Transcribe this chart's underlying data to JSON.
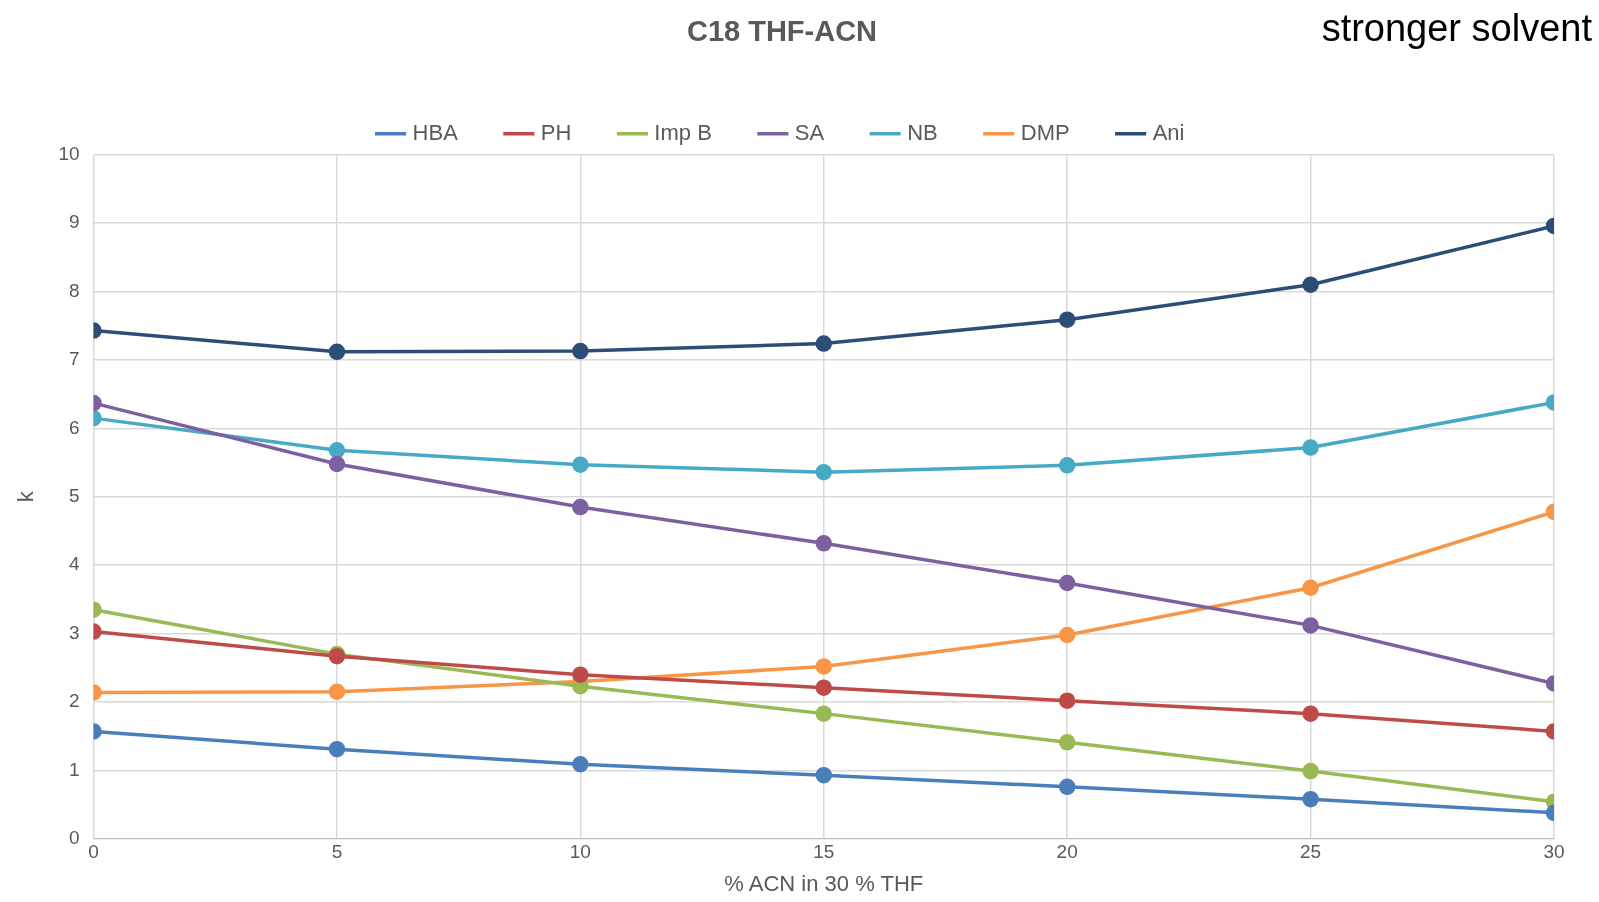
{
  "chart_data": {
    "type": "line",
    "title": "C18 THF-ACN",
    "xlabel": "% ACN in 30 % THF",
    "ylabel": "k",
    "annotations": [
      "stronger solvent"
    ],
    "x": [
      0,
      5,
      10,
      15,
      20,
      25,
      30
    ],
    "xlim": [
      0,
      30
    ],
    "xticks": [
      0,
      5,
      10,
      15,
      20,
      25,
      30
    ],
    "ylim": [
      0,
      10
    ],
    "yticks": [
      0,
      1,
      2,
      3,
      4,
      5,
      6,
      7,
      8,
      9,
      10
    ],
    "grid": true,
    "legend": "top",
    "marker": "circle",
    "line_style": "solid",
    "series": [
      {
        "name": "HBA",
        "color": "#4a7ebb",
        "values": [
          1.57,
          1.31,
          1.09,
          0.93,
          0.76,
          0.58,
          0.38
        ]
      },
      {
        "name": "PH",
        "color": "#be4b48",
        "values": [
          3.03,
          2.67,
          2.4,
          2.21,
          2.02,
          1.83,
          1.57
        ]
      },
      {
        "name": "Imp B",
        "color": "#98b954",
        "values": [
          3.35,
          2.7,
          2.23,
          1.83,
          1.41,
          0.99,
          0.54
        ]
      },
      {
        "name": "SA",
        "color": "#7d60a0",
        "values": [
          6.37,
          5.48,
          4.85,
          4.32,
          3.74,
          3.12,
          2.27
        ]
      },
      {
        "name": "NB",
        "color": "#46aac5",
        "values": [
          6.15,
          5.68,
          5.47,
          5.36,
          5.46,
          5.72,
          6.38
        ]
      },
      {
        "name": "DMP",
        "color": "#f79646",
        "values": [
          2.14,
          2.15,
          2.3,
          2.52,
          2.98,
          3.67,
          4.78
        ]
      },
      {
        "name": "Ani",
        "color": "#2c4d75",
        "values": [
          7.43,
          7.12,
          7.13,
          7.24,
          7.59,
          8.1,
          8.96
        ]
      }
    ]
  }
}
